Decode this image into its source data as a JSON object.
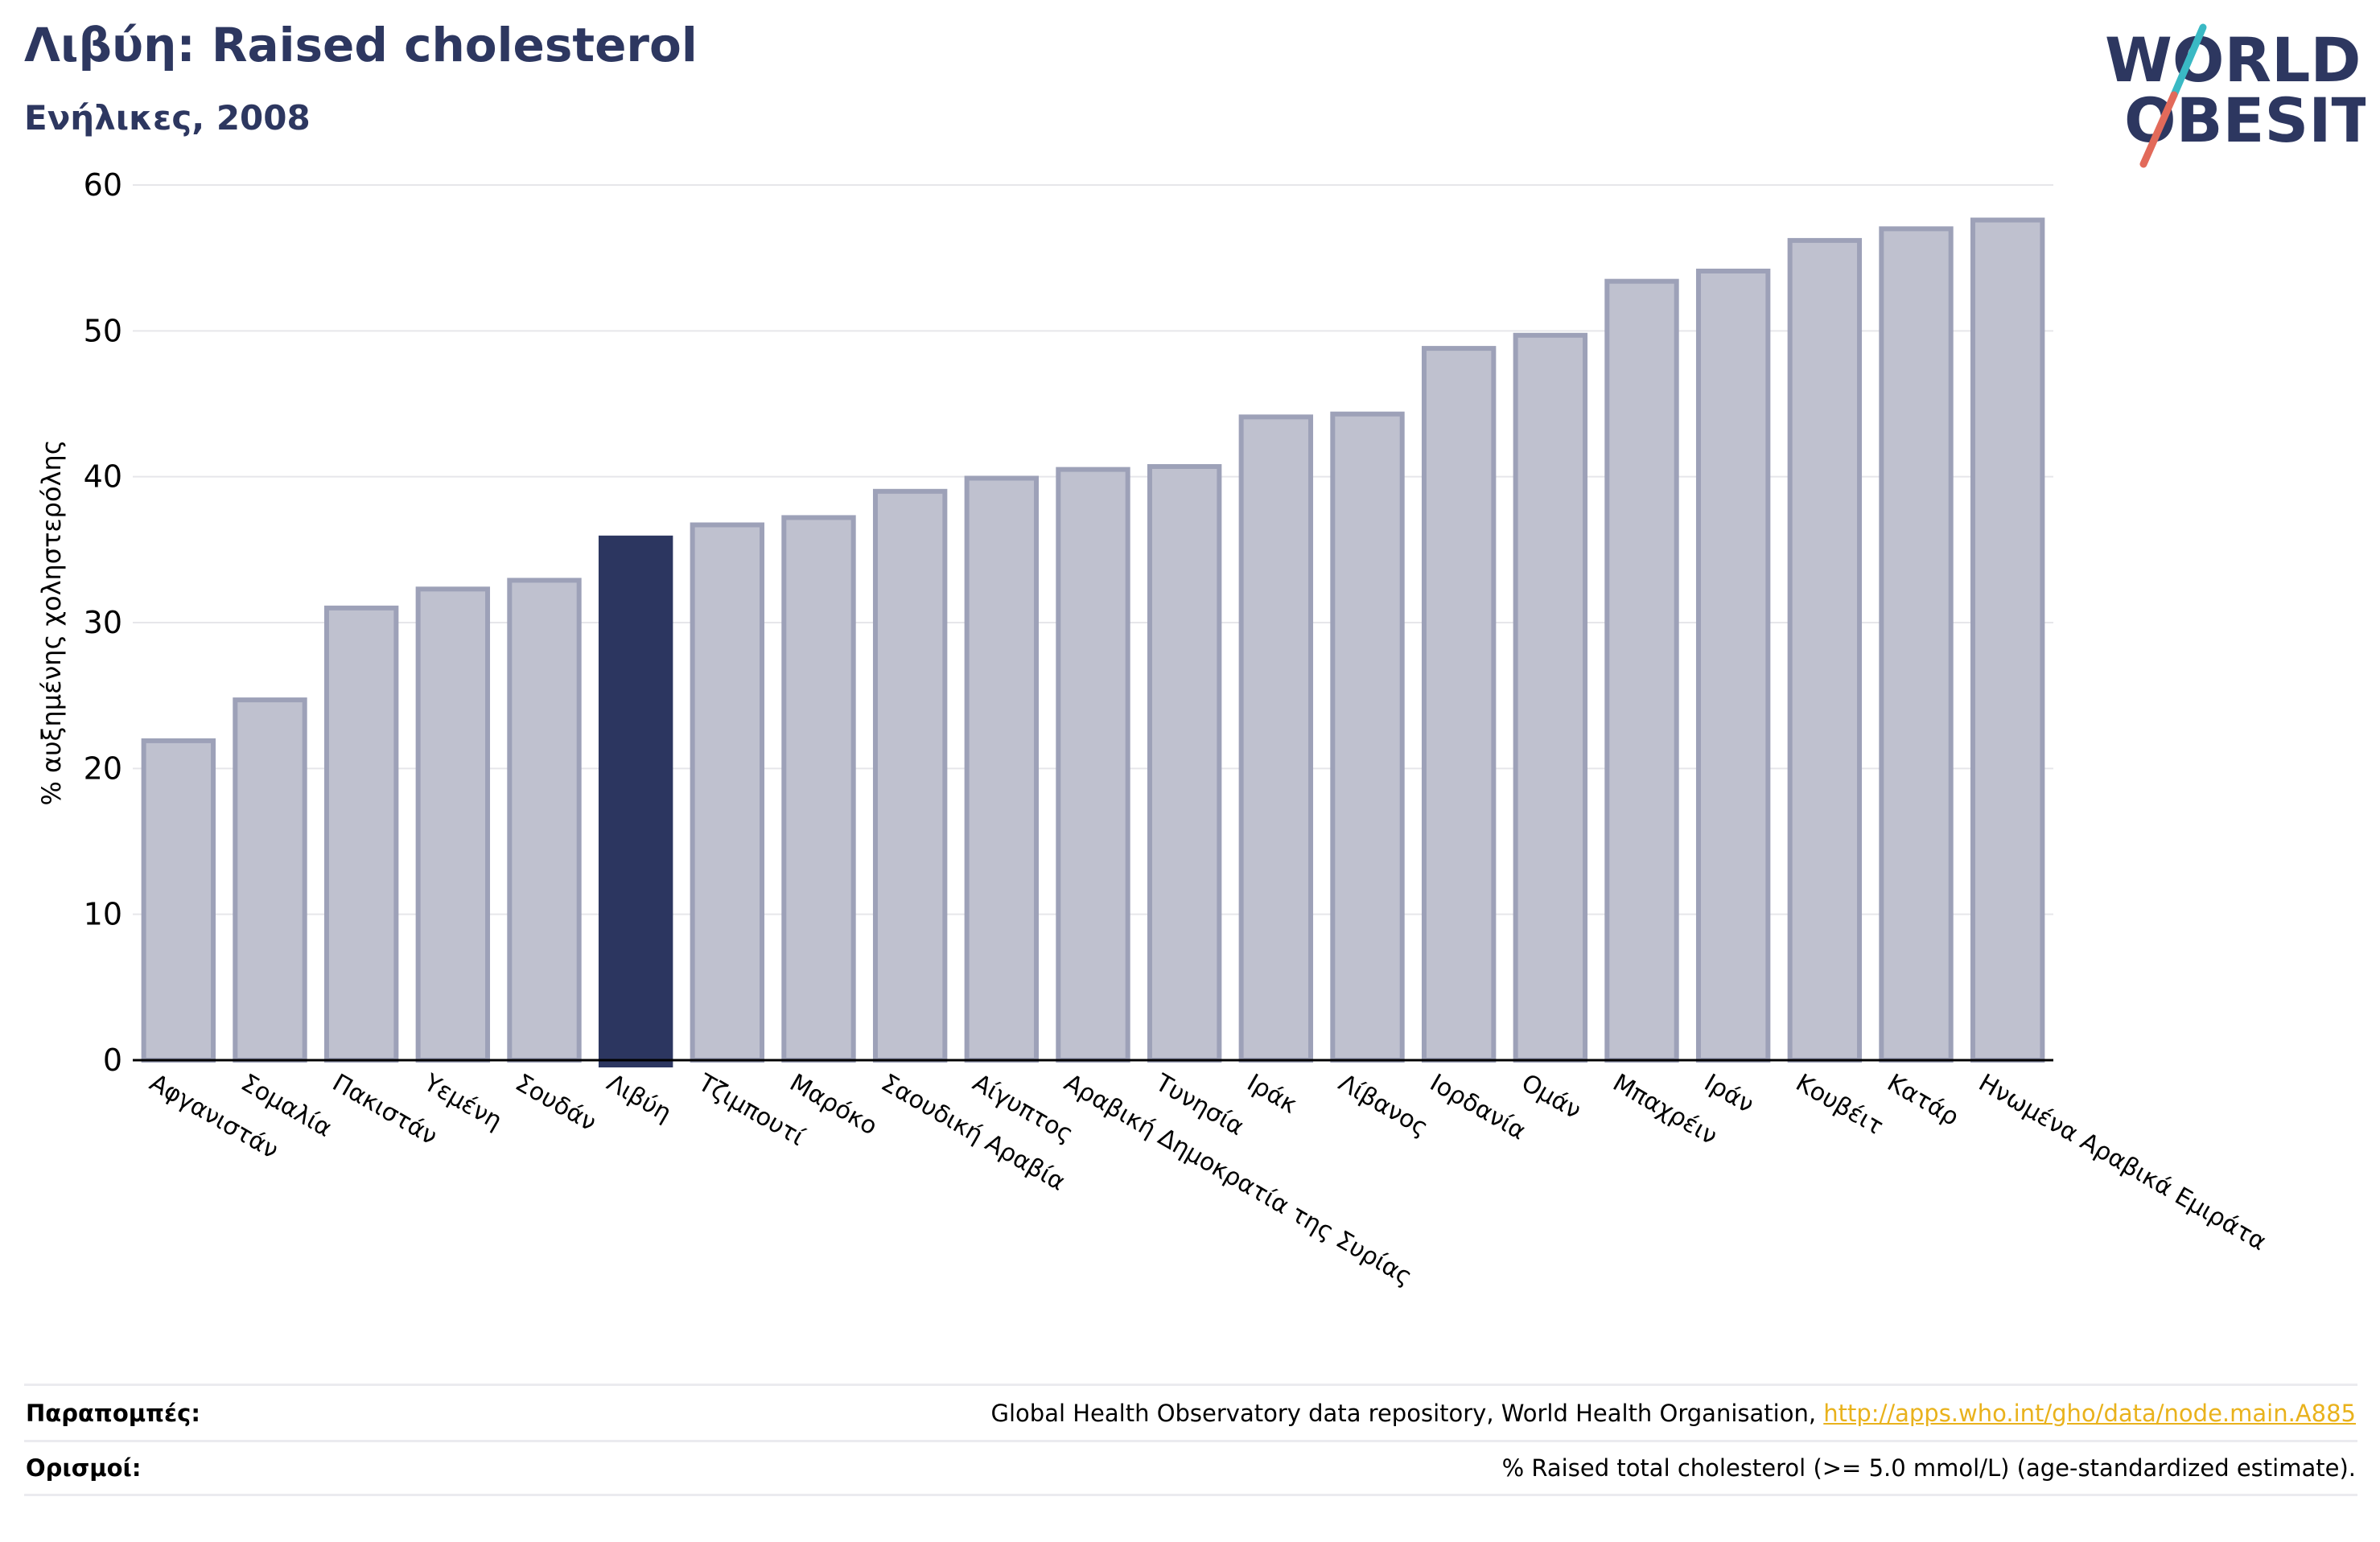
{
  "header": {
    "title": "Λιβύη: Raised cholesterol",
    "subtitle": "Ενήλικες, 2008"
  },
  "logo": {
    "line1": "WORLD",
    "line2": "OBESITY",
    "text_color": "#2d3760",
    "slash_top_color": "#3ab9c4",
    "slash_bottom_color": "#e26a5a"
  },
  "chart_data": {
    "type": "bar",
    "title": "Λιβύη: Raised cholesterol",
    "subtitle": "Ενήλικες, 2008",
    "ylabel": "% αυξημένης χοληστερόλης",
    "xlabel": "",
    "ylim": [
      0,
      60
    ],
    "yticks": [
      0,
      10,
      20,
      30,
      40,
      50,
      60
    ],
    "grid": true,
    "highlight_category": "Λιβύη",
    "colors": {
      "bar_fill": "#bfc1cf",
      "bar_edge": "#9da1b8",
      "highlight_fill": "#2c3660",
      "grid": "#e6e6ea",
      "axis": "#000000"
    },
    "categories": [
      "Αφγανιστάν",
      "Σομαλία",
      "Πακιστάν",
      "Υεμένη",
      "Σουδάν",
      "Λιβύη",
      "Τζιμπουτί",
      "Μαρόκο",
      "Σαουδική Αραβία",
      "Αίγυπτος",
      "Αραβική Δημοκρατία της Συρίας",
      "Τυνησία",
      "Ιράκ",
      "Λίβανος",
      "Ιορδανία",
      "Ομάν",
      "Μπαχρέιν",
      "Ιράν",
      "Κουβέιτ",
      "Κατάρ",
      "Ηνωμένα Αραβικά Εμιράτα"
    ],
    "values": [
      21.9,
      24.7,
      31.0,
      32.3,
      32.9,
      35.8,
      36.7,
      37.2,
      39.0,
      39.9,
      40.5,
      40.7,
      44.1,
      44.3,
      48.8,
      49.7,
      53.4,
      54.1,
      56.2,
      57.0,
      57.6
    ]
  },
  "footer": {
    "references_label": "Παραπομπές:",
    "references_text": "Global Health Observatory data repository, World Health Organisation, ",
    "references_link": "http://apps.who.int/gho/data/node.main.A885",
    "definitions_label": "Ορισμοί:",
    "definitions_text": "% Raised total cholesterol (>= 5.0 mmol/L) (age-standardized estimate)."
  }
}
